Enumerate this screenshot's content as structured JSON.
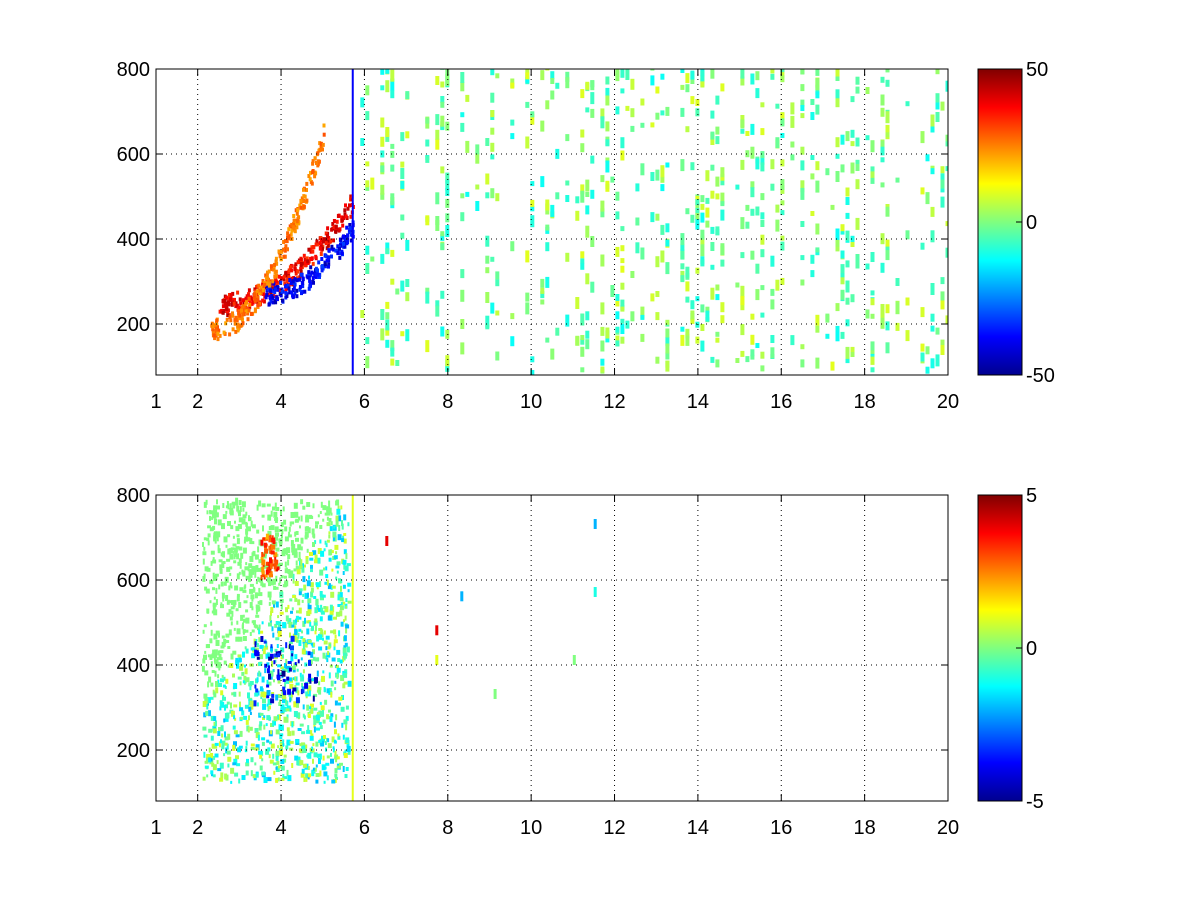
{
  "chart_data": [
    {
      "type": "heatmap",
      "title": "",
      "xlabel": "",
      "ylabel": "",
      "xlim": [
        1,
        20
      ],
      "ylim": [
        80,
        800
      ],
      "x_ticks": [
        1,
        2,
        4,
        6,
        8,
        10,
        12,
        14,
        16,
        18,
        20
      ],
      "y_ticks": [
        200,
        400,
        600,
        800
      ],
      "grid": true,
      "colormap": "jet",
      "colorbar": {
        "range": [
          -50,
          50
        ],
        "ticks": [
          50,
          0,
          -50
        ],
        "position": "right"
      },
      "features": [
        {
          "kind": "band",
          "x": [
            2.5,
            5.7
          ],
          "y_at_start": 240,
          "y_at_end": 480,
          "value": 45
        },
        {
          "kind": "band",
          "x": [
            3.6,
            5.7
          ],
          "y_at_start": 265,
          "y_at_end": 420,
          "value": -45
        },
        {
          "kind": "band",
          "x": [
            2.3,
            5.0
          ],
          "y_at_start": 180,
          "y_at_end": 640,
          "value": 30
        },
        {
          "kind": "vertical_line",
          "x": 5.72,
          "y": [
            80,
            800
          ],
          "value": -38
        },
        {
          "kind": "scattered_columns",
          "x": [
            5.9,
            20
          ],
          "value_range": [
            -12,
            10
          ],
          "density": 0.16
        }
      ]
    },
    {
      "type": "heatmap",
      "title": "",
      "xlabel": "",
      "ylabel": "",
      "xlim": [
        1,
        20
      ],
      "ylim": [
        80,
        800
      ],
      "x_ticks": [
        1,
        2,
        4,
        6,
        8,
        10,
        12,
        14,
        16,
        18,
        20
      ],
      "y_ticks": [
        200,
        400,
        600,
        800
      ],
      "grid": true,
      "colormap": "jet",
      "colorbar": {
        "range": [
          -5,
          5
        ],
        "ticks": [
          5,
          0,
          -5
        ],
        "position": "right"
      },
      "features": [
        {
          "kind": "region",
          "x": [
            2.1,
            5.6
          ],
          "y": [
            120,
            780
          ],
          "value_range": [
            -2,
            1
          ]
        },
        {
          "kind": "patch",
          "x": [
            3.3,
            4.8
          ],
          "y": [
            300,
            460
          ],
          "value": -4
        },
        {
          "kind": "patch",
          "x": [
            3.5,
            3.9
          ],
          "y": [
            600,
            700
          ],
          "value": 3
        },
        {
          "kind": "vertical_line",
          "x": 5.72,
          "y": [
            80,
            800
          ],
          "value": 1
        },
        {
          "kind": "isolated",
          "points": [
            [
              6.5,
              680,
              4
            ],
            [
              7.7,
              470,
              4
            ],
            [
              7.7,
              400,
              1
            ],
            [
              8.3,
              550,
              -2
            ],
            [
              9.1,
              320,
              0
            ],
            [
              11.0,
              400,
              0
            ],
            [
              11.5,
              560,
              -1
            ],
            [
              11.5,
              720,
              -2
            ]
          ]
        }
      ]
    }
  ]
}
